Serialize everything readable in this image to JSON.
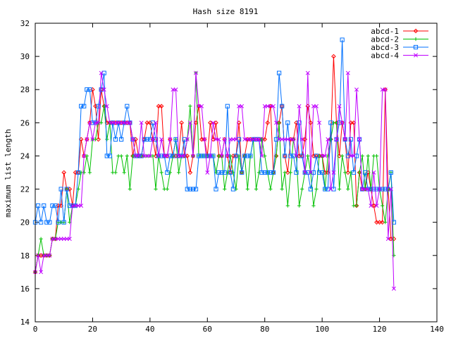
{
  "chart_data": {
    "type": "line",
    "title": "Hash size 8191",
    "xlabel": "",
    "ylabel": "maximum list length",
    "xlim": [
      0,
      140
    ],
    "ylim": [
      14,
      32
    ],
    "xticks": [
      0,
      20,
      40,
      60,
      80,
      100,
      120,
      140
    ],
    "yticks": [
      14,
      16,
      18,
      20,
      22,
      24,
      26,
      28,
      30,
      32
    ],
    "grid": false,
    "legend_position": "top-right",
    "x": [
      0,
      1,
      2,
      3,
      4,
      5,
      6,
      7,
      8,
      9,
      10,
      11,
      12,
      13,
      14,
      15,
      16,
      17,
      18,
      19,
      20,
      21,
      22,
      23,
      24,
      25,
      26,
      27,
      28,
      29,
      30,
      31,
      32,
      33,
      34,
      35,
      36,
      37,
      38,
      39,
      40,
      41,
      42,
      43,
      44,
      45,
      46,
      47,
      48,
      49,
      50,
      51,
      52,
      53,
      54,
      55,
      56,
      57,
      58,
      59,
      60,
      61,
      62,
      63,
      64,
      65,
      66,
      67,
      68,
      69,
      70,
      71,
      72,
      73,
      74,
      75,
      76,
      77,
      78,
      79,
      80,
      81,
      82,
      83,
      84,
      85,
      86,
      87,
      88,
      89,
      90,
      91,
      92,
      93,
      94,
      95,
      96,
      97,
      98,
      99,
      100,
      101,
      102,
      103,
      104,
      105,
      106,
      107,
      108,
      109,
      110,
      111,
      112,
      113,
      114,
      115,
      116,
      117,
      118,
      119,
      120,
      121,
      122,
      123,
      124,
      125
    ],
    "series": [
      {
        "name": "abcd-1",
        "color": "#ff0000",
        "marker": "diamond",
        "values": [
          17,
          18,
          18,
          18,
          18,
          18,
          19,
          19,
          21,
          21,
          23,
          22,
          22,
          21,
          23,
          23,
          25,
          24,
          25,
          26,
          28,
          27,
          25,
          28,
          27,
          26,
          26,
          26,
          26,
          26,
          26,
          26,
          26,
          26,
          24,
          25,
          24,
          24,
          25,
          26,
          26,
          25,
          24,
          27,
          27,
          24,
          24,
          25,
          24,
          24,
          24,
          26,
          24,
          24,
          23,
          24,
          26,
          27,
          25,
          25,
          24,
          26,
          25,
          26,
          24,
          24,
          25,
          24,
          23,
          24,
          24,
          26,
          23,
          24,
          25,
          25,
          25,
          25,
          25,
          25,
          25,
          26,
          27,
          23,
          24,
          26,
          27,
          24,
          23,
          25,
          25,
          26,
          24,
          24,
          25,
          27,
          26,
          24,
          24,
          24,
          24,
          23,
          23,
          25,
          30,
          26,
          24,
          26,
          25,
          23,
          26,
          26,
          21,
          23,
          22,
          22,
          23,
          22,
          21,
          20,
          20,
          20,
          28,
          22,
          19,
          19
        ]
      },
      {
        "name": "abcd-2",
        "color": "#00c000",
        "marker": "plus",
        "values": [
          17,
          18,
          19,
          18,
          18,
          18,
          19,
          19,
          20,
          20,
          20,
          22,
          20,
          21,
          21,
          22,
          23,
          23,
          24,
          23,
          25,
          25,
          26,
          26,
          27,
          25,
          26,
          23,
          23,
          24,
          24,
          23,
          24,
          22,
          24,
          24,
          24,
          24,
          24,
          24,
          24,
          24,
          22,
          24,
          23,
          22,
          22,
          23,
          24,
          25,
          23,
          24,
          24,
          25,
          27,
          24,
          29,
          24,
          24,
          24,
          24,
          24,
          24,
          23,
          24,
          24,
          22,
          23,
          24,
          23,
          22,
          24,
          23,
          24,
          22,
          24,
          25,
          22,
          23,
          25,
          24,
          23,
          22,
          23,
          24,
          26,
          22,
          23,
          21,
          23,
          25,
          24,
          21,
          22,
          23,
          24,
          23,
          21,
          22,
          24,
          24,
          22,
          24,
          25,
          26,
          26,
          22,
          24,
          23,
          22,
          23,
          21,
          21,
          23,
          24,
          22,
          24,
          22,
          24,
          24,
          22,
          21,
          20,
          22,
          23,
          18
        ]
      },
      {
        "name": "abcd-3",
        "color": "#0070ff",
        "marker": "square",
        "values": [
          20,
          21,
          20,
          21,
          20,
          20,
          21,
          21,
          20,
          22,
          20,
          22,
          21,
          21,
          21,
          23,
          27,
          27,
          28,
          28,
          26,
          26,
          27,
          28,
          29,
          24,
          24,
          26,
          25,
          26,
          25,
          26,
          27,
          26,
          25,
          24,
          24,
          24,
          25,
          25,
          25,
          26,
          25,
          24,
          24,
          24,
          23,
          24,
          24,
          25,
          24,
          24,
          25,
          22,
          22,
          22,
          22,
          24,
          24,
          24,
          24,
          24,
          24,
          22,
          23,
          23,
          23,
          27,
          23,
          22,
          24,
          25,
          23,
          24,
          24,
          24,
          25,
          25,
          25,
          23,
          23,
          23,
          23,
          23,
          25,
          29,
          27,
          24,
          26,
          24,
          24,
          23,
          26,
          24,
          23,
          23,
          22,
          23,
          24,
          23,
          23,
          22,
          22,
          26,
          22,
          25,
          26,
          31,
          25,
          24,
          25,
          23,
          24,
          25,
          22,
          23,
          22,
          22,
          22,
          22,
          22,
          22,
          22,
          22,
          23,
          20
        ]
      },
      {
        "name": "abcd-4",
        "color": "#c000ff",
        "marker": "x",
        "values": [
          17,
          18,
          17,
          18,
          18,
          18,
          19,
          19,
          19,
          19,
          19,
          19,
          19,
          21,
          21,
          21,
          21,
          24,
          25,
          26,
          25,
          26,
          26,
          29,
          28,
          27,
          26,
          26,
          26,
          26,
          26,
          26,
          26,
          26,
          25,
          24,
          24,
          26,
          24,
          24,
          24,
          25,
          26,
          24,
          25,
          24,
          24,
          25,
          28,
          28,
          24,
          24,
          24,
          25,
          26,
          24,
          29,
          27,
          27,
          25,
          23,
          24,
          26,
          25,
          25,
          24,
          25,
          24,
          25,
          25,
          25,
          27,
          27,
          25,
          25,
          25,
          25,
          25,
          25,
          24,
          27,
          27,
          27,
          27,
          26,
          25,
          25,
          25,
          25,
          25,
          25,
          24,
          27,
          25,
          23,
          29,
          23,
          27,
          27,
          26,
          24,
          24,
          25,
          22,
          23,
          25,
          27,
          26,
          25,
          29,
          24,
          24,
          28,
          25,
          22,
          22,
          22,
          21,
          23,
          21,
          22,
          28,
          28,
          19,
          22,
          16
        ]
      }
    ]
  }
}
